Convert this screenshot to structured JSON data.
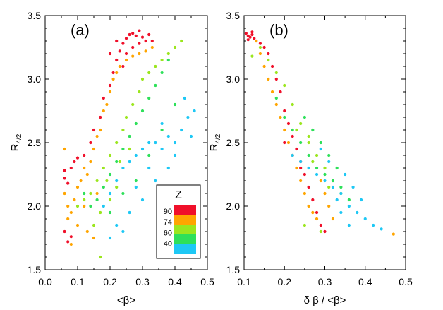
{
  "colors": {
    "z90": "#f0102a",
    "z74": "#ffa500",
    "z60": "#9be61e",
    "z50": "#2ee05a",
    "z40": "#1ec8f5",
    "reference_line": "#555555",
    "axis": "#000000"
  },
  "chart_data": [
    {
      "type": "scatter",
      "panel_label": "(a)",
      "xlabel": "<β>",
      "ylabel": "R",
      "ylabel_sub": "4/2",
      "xlim": [
        0.0,
        0.5
      ],
      "ylim": [
        1.5,
        3.5
      ],
      "xticks": [
        "0.0",
        "0.1",
        "0.2",
        "0.3",
        "0.4",
        "0.5"
      ],
      "yticks": [
        "1.5",
        "2.0",
        "2.5",
        "3.0",
        "3.5"
      ],
      "reference_line_y": 3.33,
      "grid": false,
      "legend": {
        "title": "Z",
        "placement": "bottom-right",
        "entries": [
          "90",
          "74",
          "60",
          "40"
        ]
      },
      "series": [
        {
          "color_key": "z90",
          "points": [
            [
              0.06,
              2.28
            ],
            [
              0.06,
              2.22
            ],
            [
              0.07,
              2.18
            ],
            [
              0.06,
              1.8
            ],
            [
              0.07,
              1.72
            ],
            [
              0.08,
              1.76
            ],
            [
              0.08,
              2.3
            ],
            [
              0.09,
              2.35
            ],
            [
              0.1,
              2.38
            ],
            [
              0.12,
              2.4
            ],
            [
              0.14,
              2.5
            ],
            [
              0.15,
              2.6
            ],
            [
              0.17,
              2.7
            ],
            [
              0.18,
              2.85
            ],
            [
              0.2,
              2.95
            ],
            [
              0.21,
              3.05
            ],
            [
              0.22,
              3.15
            ],
            [
              0.23,
              3.22
            ],
            [
              0.24,
              3.28
            ],
            [
              0.25,
              3.32
            ],
            [
              0.26,
              3.35
            ],
            [
              0.27,
              3.36
            ],
            [
              0.28,
              3.34
            ],
            [
              0.29,
              3.38
            ],
            [
              0.3,
              3.33
            ],
            [
              0.31,
              3.3
            ],
            [
              0.32,
              3.35
            ],
            [
              0.33,
              3.3
            ],
            [
              0.25,
              3.2
            ],
            [
              0.27,
              3.25
            ],
            [
              0.29,
              3.28
            ],
            [
              0.24,
              3.1
            ],
            [
              0.2,
              3.2
            ],
            [
              0.22,
              3.3
            ]
          ]
        },
        {
          "color_key": "z74",
          "points": [
            [
              0.06,
              2.45
            ],
            [
              0.06,
              2.1
            ],
            [
              0.07,
              2.0
            ],
            [
              0.07,
              1.9
            ],
            [
              0.08,
              1.95
            ],
            [
              0.09,
              2.05
            ],
            [
              0.1,
              2.15
            ],
            [
              0.11,
              2.2
            ],
            [
              0.12,
              2.3
            ],
            [
              0.13,
              2.25
            ],
            [
              0.14,
              2.35
            ],
            [
              0.15,
              2.45
            ],
            [
              0.16,
              2.55
            ],
            [
              0.17,
              2.6
            ],
            [
              0.18,
              2.75
            ],
            [
              0.19,
              2.8
            ],
            [
              0.2,
              2.9
            ],
            [
              0.21,
              3.0
            ],
            [
              0.22,
              3.05
            ],
            [
              0.23,
              3.1
            ],
            [
              0.25,
              3.15
            ],
            [
              0.27,
              3.18
            ],
            [
              0.29,
              3.2
            ],
            [
              0.31,
              3.22
            ],
            [
              0.33,
              3.25
            ],
            [
              0.1,
              1.85
            ],
            [
              0.13,
              1.8
            ],
            [
              0.15,
              1.75
            ],
            [
              0.08,
              1.7
            ],
            [
              0.12,
              2.0
            ],
            [
              0.16,
              2.1
            ]
          ]
        },
        {
          "color_key": "z60",
          "points": [
            [
              0.1,
              2.0
            ],
            [
              0.12,
              2.05
            ],
            [
              0.14,
              2.1
            ],
            [
              0.16,
              2.2
            ],
            [
              0.18,
              2.3
            ],
            [
              0.2,
              2.4
            ],
            [
              0.22,
              2.5
            ],
            [
              0.24,
              2.6
            ],
            [
              0.25,
              2.7
            ],
            [
              0.27,
              2.8
            ],
            [
              0.29,
              2.9
            ],
            [
              0.3,
              3.0
            ],
            [
              0.32,
              3.05
            ],
            [
              0.34,
              3.1
            ],
            [
              0.36,
              3.15
            ],
            [
              0.38,
              3.2
            ],
            [
              0.4,
              3.25
            ],
            [
              0.42,
              3.3
            ],
            [
              0.19,
              2.2
            ],
            [
              0.23,
              2.35
            ],
            [
              0.26,
              2.45
            ],
            [
              0.17,
              1.95
            ],
            [
              0.2,
              2.05
            ],
            [
              0.22,
              2.15
            ],
            [
              0.15,
              1.85
            ],
            [
              0.17,
              1.6
            ]
          ]
        },
        {
          "color_key": "z50",
          "points": [
            [
              0.12,
              2.1
            ],
            [
              0.14,
              2.0
            ],
            [
              0.16,
              2.05
            ],
            [
              0.18,
              2.15
            ],
            [
              0.2,
              2.25
            ],
            [
              0.22,
              2.35
            ],
            [
              0.24,
              2.45
            ],
            [
              0.26,
              2.55
            ],
            [
              0.28,
              2.65
            ],
            [
              0.3,
              2.75
            ],
            [
              0.32,
              2.85
            ],
            [
              0.34,
              2.95
            ],
            [
              0.36,
              3.05
            ],
            [
              0.38,
              3.15
            ],
            [
              0.2,
              1.95
            ],
            [
              0.24,
              2.1
            ],
            [
              0.28,
              2.2
            ],
            [
              0.32,
              2.4
            ],
            [
              0.36,
              2.6
            ],
            [
              0.4,
              2.8
            ]
          ]
        },
        {
          "color_key": "z40",
          "points": [
            [
              0.18,
              2.0
            ],
            [
              0.2,
              2.1
            ],
            [
              0.22,
              2.2
            ],
            [
              0.24,
              2.3
            ],
            [
              0.26,
              2.35
            ],
            [
              0.28,
              2.4
            ],
            [
              0.3,
              2.45
            ],
            [
              0.32,
              2.5
            ],
            [
              0.34,
              2.5
            ],
            [
              0.36,
              2.45
            ],
            [
              0.38,
              2.55
            ],
            [
              0.4,
              2.5
            ],
            [
              0.42,
              2.6
            ],
            [
              0.44,
              2.7
            ],
            [
              0.46,
              2.75
            ],
            [
              0.43,
              2.85
            ],
            [
              0.45,
              2.55
            ],
            [
              0.22,
              1.85
            ],
            [
              0.26,
              1.95
            ],
            [
              0.3,
              2.05
            ],
            [
              0.34,
              2.2
            ],
            [
              0.38,
              2.3
            ],
            [
              0.2,
              1.75
            ],
            [
              0.24,
              1.8
            ],
            [
              0.28,
              2.15
            ],
            [
              0.32,
              2.3
            ],
            [
              0.36,
              2.65
            ],
            [
              0.4,
              2.4
            ]
          ]
        }
      ]
    },
    {
      "type": "scatter",
      "panel_label": "(b)",
      "xlabel": "δ β / <β>",
      "ylabel": "R",
      "ylabel_sub": "4/2",
      "xlim": [
        0.1,
        0.5
      ],
      "ylim": [
        1.5,
        3.5
      ],
      "xticks": [
        "0.1",
        "0.2",
        "0.3",
        "0.4",
        "0.5"
      ],
      "yticks": [
        "1.5",
        "2.0",
        "2.5",
        "3.0",
        "3.5"
      ],
      "reference_line_y": 3.33,
      "grid": false,
      "series": [
        {
          "color_key": "z90",
          "points": [
            [
              0.105,
              3.36
            ],
            [
              0.11,
              3.34
            ],
            [
              0.115,
              3.33
            ],
            [
              0.12,
              3.35
            ],
            [
              0.125,
              3.32
            ],
            [
              0.13,
              3.3
            ],
            [
              0.14,
              3.28
            ],
            [
              0.15,
              3.25
            ],
            [
              0.16,
              3.2
            ],
            [
              0.17,
              3.1
            ],
            [
              0.18,
              3.0
            ],
            [
              0.19,
              2.9
            ],
            [
              0.2,
              2.75
            ],
            [
              0.21,
              2.65
            ],
            [
              0.22,
              2.55
            ],
            [
              0.23,
              2.45
            ],
            [
              0.24,
              2.35
            ],
            [
              0.25,
              2.25
            ],
            [
              0.26,
              2.15
            ],
            [
              0.27,
              2.05
            ],
            [
              0.28,
              1.95
            ],
            [
              0.29,
              1.85
            ],
            [
              0.3,
              1.8
            ],
            [
              0.2,
              2.5
            ],
            [
              0.22,
              2.4
            ],
            [
              0.24,
              2.3
            ],
            [
              0.11,
              3.31
            ],
            [
              0.12,
              3.37
            ]
          ]
        },
        {
          "color_key": "z74",
          "points": [
            [
              0.13,
              3.3
            ],
            [
              0.14,
              3.2
            ],
            [
              0.15,
              3.1
            ],
            [
              0.16,
              3.0
            ],
            [
              0.17,
              2.9
            ],
            [
              0.18,
              2.8
            ],
            [
              0.19,
              2.7
            ],
            [
              0.2,
              2.6
            ],
            [
              0.21,
              2.5
            ],
            [
              0.22,
              2.4
            ],
            [
              0.23,
              2.3
            ],
            [
              0.24,
              2.2
            ],
            [
              0.25,
              2.1
            ],
            [
              0.26,
              2.0
            ],
            [
              0.27,
              1.95
            ],
            [
              0.28,
              1.9
            ],
            [
              0.29,
              2.2
            ],
            [
              0.3,
              2.1
            ],
            [
              0.31,
              2.0
            ],
            [
              0.32,
              1.9
            ],
            [
              0.47,
              1.78
            ]
          ]
        },
        {
          "color_key": "z60",
          "points": [
            [
              0.14,
              3.25
            ],
            [
              0.16,
              3.15
            ],
            [
              0.18,
              3.05
            ],
            [
              0.2,
              2.95
            ],
            [
              0.22,
              2.8
            ],
            [
              0.24,
              2.65
            ],
            [
              0.26,
              2.5
            ],
            [
              0.28,
              2.4
            ],
            [
              0.3,
              2.3
            ],
            [
              0.32,
              2.2
            ],
            [
              0.34,
              2.1
            ],
            [
              0.23,
              2.6
            ],
            [
              0.27,
              2.35
            ],
            [
              0.31,
              2.15
            ],
            [
              0.25,
              1.85
            ],
            [
              0.29,
              1.8
            ],
            [
              0.12,
              3.18
            ],
            [
              0.26,
              2.55
            ]
          ]
        },
        {
          "color_key": "z50",
          "points": [
            [
              0.18,
              2.85
            ],
            [
              0.2,
              2.7
            ],
            [
              0.22,
              2.6
            ],
            [
              0.24,
              2.5
            ],
            [
              0.26,
              2.4
            ],
            [
              0.28,
              2.3
            ],
            [
              0.3,
              2.25
            ],
            [
              0.32,
              2.2
            ],
            [
              0.34,
              2.15
            ],
            [
              0.36,
              2.05
            ],
            [
              0.25,
              2.7
            ],
            [
              0.27,
              2.6
            ],
            [
              0.29,
              2.5
            ],
            [
              0.31,
              2.4
            ],
            [
              0.33,
              2.3
            ]
          ]
        },
        {
          "color_key": "z40",
          "points": [
            [
              0.22,
              2.4
            ],
            [
              0.24,
              2.35
            ],
            [
              0.26,
              2.3
            ],
            [
              0.28,
              2.25
            ],
            [
              0.3,
              2.2
            ],
            [
              0.32,
              2.15
            ],
            [
              0.34,
              2.1
            ],
            [
              0.36,
              2.0
            ],
            [
              0.38,
              1.95
            ],
            [
              0.4,
              1.9
            ],
            [
              0.42,
              1.85
            ],
            [
              0.44,
              1.82
            ],
            [
              0.35,
              2.25
            ],
            [
              0.37,
              2.15
            ],
            [
              0.39,
              2.05
            ],
            [
              0.33,
              2.05
            ],
            [
              0.36,
              1.85
            ],
            [
              0.31,
              2.35
            ],
            [
              0.29,
              2.45
            ],
            [
              0.34,
              1.95
            ]
          ]
        }
      ]
    }
  ]
}
